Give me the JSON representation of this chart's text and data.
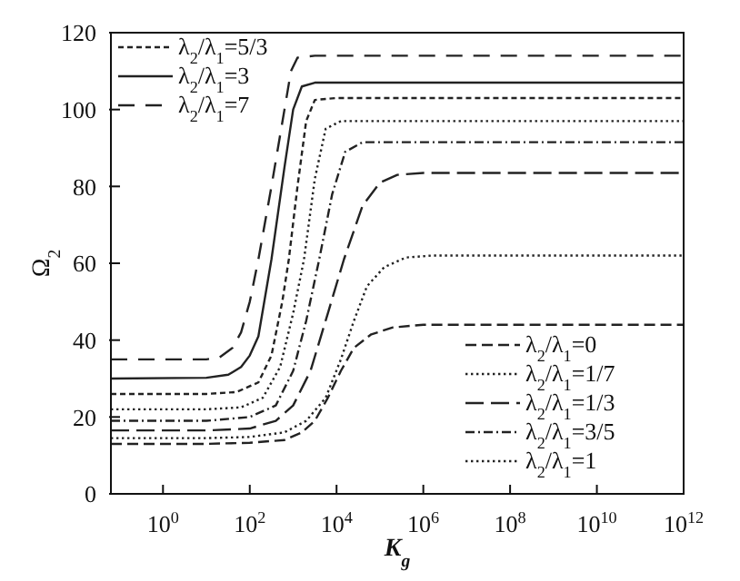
{
  "chart_data": {
    "type": "line",
    "xlabel": "K$_{g}$",
    "ylabel": "Ω$_{2}$",
    "log": "x",
    "xlim": [
      0.063,
      1000000000000.0
    ],
    "xticks": [
      {
        "value": 1,
        "label": "10$^{0}$"
      },
      {
        "value": 100,
        "label": "10$^{2}$"
      },
      {
        "value": 10000.0,
        "label": "10$^{4}$"
      },
      {
        "value": 1000000.0,
        "label": "10$^{6}$"
      },
      {
        "value": 100000000.0,
        "label": "10$^{8}$"
      },
      {
        "value": 10000000000.0,
        "label": "10$^{10}$"
      },
      {
        "value": 1000000000000.0,
        "label": "10$^{12}$"
      }
    ],
    "ylim": [
      0,
      120
    ],
    "yticks": [
      0,
      20,
      40,
      60,
      80,
      100,
      120
    ],
    "legend": "top left",
    "marker": "none",
    "series": [
      {
        "name": "λ$_{2}$/λ$_{1}$=5/3",
        "color": "#222222",
        "line_style": "dashed",
        "x": [
          0.063,
          10,
          50,
          158,
          316,
          562,
          794,
          1259,
          1995,
          3162,
          10000,
          1000000000000.0
        ],
        "values": [
          26,
          26,
          26.5,
          29,
          36,
          50,
          61,
          80,
          97,
          102.5,
          103,
          103
        ]
      },
      {
        "name": "λ$_{2}$/λ$_{1}$=3",
        "color": "#222222",
        "line_style": "solid",
        "x": [
          0.063,
          10,
          32,
          63,
          100,
          158,
          316,
          631,
          1000,
          1585,
          3162,
          1000000000000.0
        ],
        "values": [
          30,
          30.2,
          31,
          33,
          36,
          41,
          61,
          85,
          100,
          106,
          107,
          107
        ]
      },
      {
        "name": "λ$_{2}$/λ$_{1}$=7",
        "color": "#222222",
        "line_style": "dashed",
        "x": [
          0.063,
          10,
          20,
          40,
          63,
          100,
          158,
          316,
          631,
          891,
          1259,
          3162,
          1000000000000.0
        ],
        "values": [
          35,
          35,
          35.5,
          38,
          42,
          50,
          61,
          80,
          100,
          110,
          113.5,
          114,
          114
        ]
      },
      {
        "name": "λ$_{2}$/λ$_{1}$=0",
        "color": "#222222",
        "line_style": "dashed",
        "x": [
          0.063,
          10,
          100,
          631,
          1585,
          3162,
          6310,
          12590,
          25120,
          63100,
          199500,
          1000000.0,
          1000000000000.0
        ],
        "values": [
          13,
          13,
          13.3,
          14,
          16,
          19,
          25,
          32,
          38,
          41.5,
          43.3,
          44,
          44
        ]
      },
      {
        "name": "λ$_{2}$/λ$_{1}$=1/7",
        "color": "#222222",
        "line_style": "dotted",
        "x": [
          0.063,
          10,
          100,
          631,
          1995,
          5623,
          12590,
          25120,
          50120,
          125900,
          398100,
          1585000,
          1000000000000.0
        ],
        "values": [
          14.5,
          14.5,
          14.8,
          16,
          19,
          25,
          35,
          45,
          54,
          59,
          61.5,
          62,
          62
        ]
      },
      {
        "name": "λ$_{2}$/λ$_{1}$=1/3",
        "color": "#222222",
        "line_style": "dashed",
        "x": [
          0.063,
          10,
          100,
          398,
          1000,
          2512,
          6310,
          14790,
          39810,
          100000,
          251200,
          1000000.0,
          1000000000000.0
        ],
        "values": [
          16.5,
          16.5,
          17,
          19,
          23,
          32,
          47,
          61,
          75,
          81,
          83,
          83.5,
          83.5
        ]
      },
      {
        "name": "λ$_{2}$/λ$_{1}$=3/5",
        "color": "#222222",
        "line_style": "dashed",
        "x": [
          0.063,
          10,
          100,
          398,
          1000,
          1995,
          3981,
          7943,
          15850,
          39810,
          1000000000000.0
        ],
        "values": [
          19,
          19,
          20,
          23,
          32,
          45,
          61,
          78,
          89,
          91.5,
          91.5
        ]
      },
      {
        "name": "λ$_{2}$/λ$_{1}$=1",
        "color": "#222222",
        "line_style": "dotted",
        "x": [
          0.063,
          10,
          63,
          200,
          501,
          1000,
          1778,
          3162,
          5623,
          12590,
          1000000000000.0
        ],
        "values": [
          22,
          22,
          22.5,
          25,
          33,
          47,
          61,
          82,
          95,
          97,
          97
        ]
      }
    ]
  }
}
